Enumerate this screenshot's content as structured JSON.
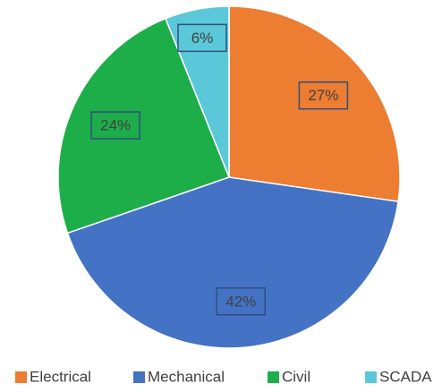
{
  "chart_data": {
    "type": "pie",
    "categories": [
      "Electrical",
      "Mechanical",
      "Civil",
      "SCADA"
    ],
    "values": [
      27,
      42,
      24,
      6
    ],
    "value_labels": [
      "27%",
      "42%",
      "24%",
      "6%"
    ],
    "colors": [
      "#ED7D31",
      "#4472C4",
      "#1DAE4A",
      "#5BC8D9"
    ],
    "legend": "bottom"
  }
}
